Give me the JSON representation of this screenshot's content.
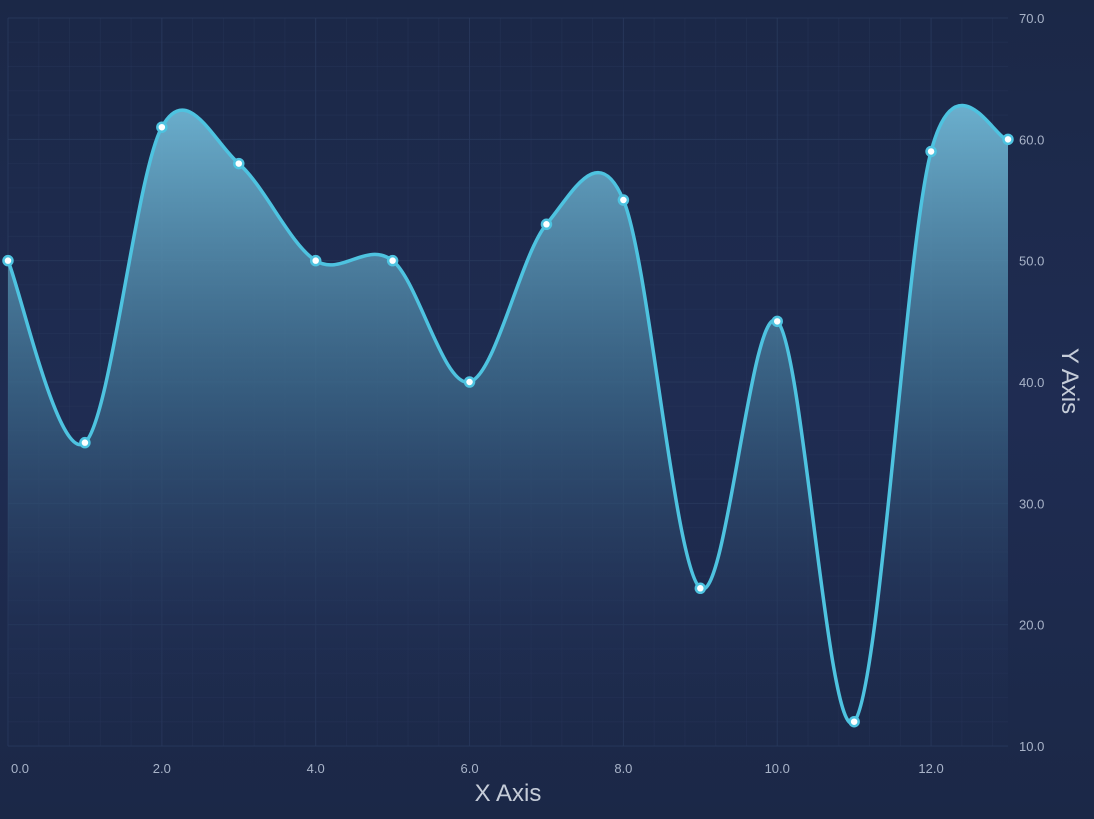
{
  "chart_data": {
    "type": "area",
    "title": "",
    "xlabel": "X Axis",
    "ylabel": "Y Axis",
    "xlim": [
      0,
      13
    ],
    "ylim": [
      10,
      70
    ],
    "xticks": [
      "0.0",
      "2.0",
      "4.0",
      "6.0",
      "8.0",
      "10.0",
      "12.0"
    ],
    "yticks": [
      "10.0",
      "20.0",
      "30.0",
      "40.0",
      "50.0",
      "60.0",
      "70.0"
    ],
    "grid": true,
    "legend": "none",
    "y_axis_position": "right",
    "series": [
      {
        "x": [
          0,
          1,
          2,
          3,
          4,
          5,
          6,
          7,
          8,
          9,
          10,
          11,
          12,
          13
        ],
        "y": [
          50,
          35,
          61,
          58,
          50,
          50,
          40,
          53,
          55,
          23,
          45,
          12,
          59,
          60
        ]
      }
    ],
    "colors": {
      "background": "#1b2847",
      "line": "#4ec3e0",
      "fill_top": "#6fb6d4",
      "grid": "#2a3a5e",
      "marker_fill": "#ffffff"
    }
  }
}
